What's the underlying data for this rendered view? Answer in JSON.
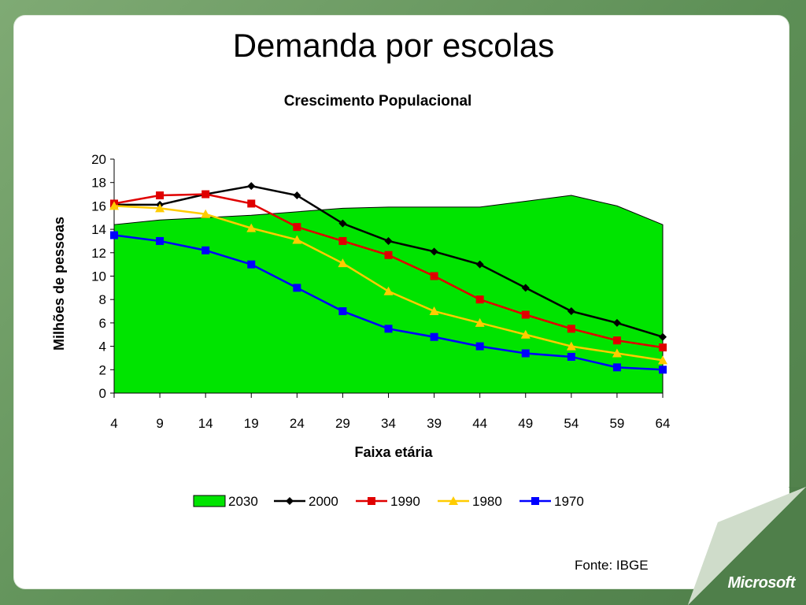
{
  "slide": {
    "title": "Demanda por escolas",
    "source": "Fonte: IBGE",
    "brand": "Microsoft"
  },
  "colors": {
    "fill_2030": "#00e400",
    "line_2000": "#000000",
    "line_1990": "#e00000",
    "line_1980": "#ffcc00",
    "line_1970": "#0000ff"
  },
  "chart_data": {
    "type": "line",
    "title": "Crescimento Populacional",
    "xlabel": "Faixa etária",
    "ylabel": "Milhões de pessoas",
    "categories": [
      "4",
      "9",
      "14",
      "19",
      "24",
      "29",
      "34",
      "39",
      "44",
      "49",
      "54",
      "59",
      "64"
    ],
    "ylim": [
      0,
      20
    ],
    "yticks": [
      0,
      2,
      4,
      6,
      8,
      10,
      12,
      14,
      16,
      18,
      20
    ],
    "legend_position": "bottom",
    "grid": false,
    "series": [
      {
        "name": "2030",
        "kind": "area",
        "marker": "none",
        "values": [
          14.4,
          14.8,
          15.0,
          15.2,
          15.5,
          15.8,
          15.9,
          15.9,
          15.9,
          16.4,
          16.9,
          16.0,
          14.4
        ]
      },
      {
        "name": "2000",
        "kind": "line",
        "marker": "diamond",
        "values": [
          16.1,
          16.1,
          17.0,
          17.7,
          16.9,
          14.5,
          13.0,
          12.1,
          11.0,
          9.0,
          7.0,
          6.0,
          4.8
        ]
      },
      {
        "name": "1990",
        "kind": "line",
        "marker": "square",
        "values": [
          16.2,
          16.9,
          17.0,
          16.2,
          14.2,
          13.0,
          11.8,
          10.0,
          8.0,
          6.7,
          5.5,
          4.5,
          3.9
        ]
      },
      {
        "name": "1980",
        "kind": "line",
        "marker": "triangle",
        "values": [
          16.0,
          15.8,
          15.3,
          14.1,
          13.1,
          11.1,
          8.7,
          7.0,
          6.0,
          5.0,
          4.0,
          3.4,
          2.8
        ]
      },
      {
        "name": "1970",
        "kind": "line",
        "marker": "square",
        "values": [
          13.5,
          13.0,
          12.2,
          11.0,
          9.0,
          7.0,
          5.5,
          4.8,
          4.0,
          3.4,
          3.1,
          2.2,
          2.0
        ]
      }
    ]
  }
}
